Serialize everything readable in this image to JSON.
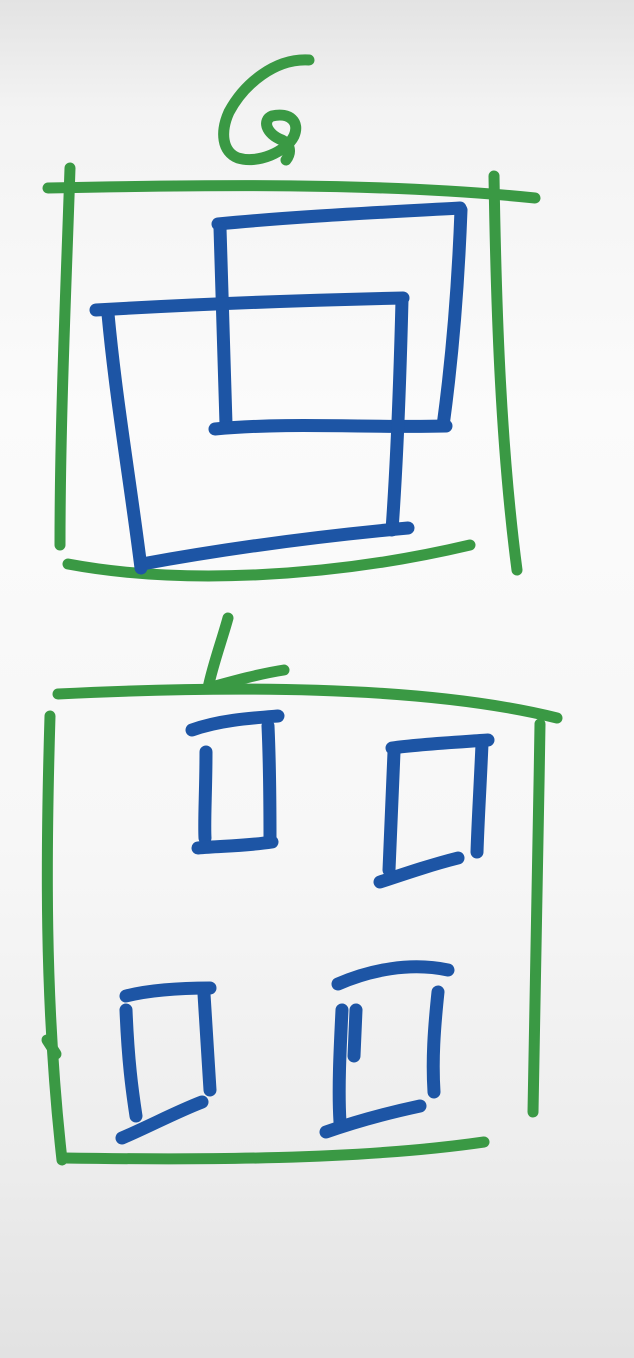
{
  "diagram": {
    "top_label": "6",
    "bottom_label": "L",
    "colors": {
      "frame": "#3a9944",
      "box": "#1d55a5",
      "background": "#f7f7f7"
    },
    "top_panel": {
      "label": "6",
      "frame_color": "green",
      "box_count": 2,
      "arrangement": "overlapping"
    },
    "bottom_panel": {
      "label": "L",
      "frame_color": "green",
      "box_count": 4,
      "arrangement": "2x2 grid"
    }
  }
}
